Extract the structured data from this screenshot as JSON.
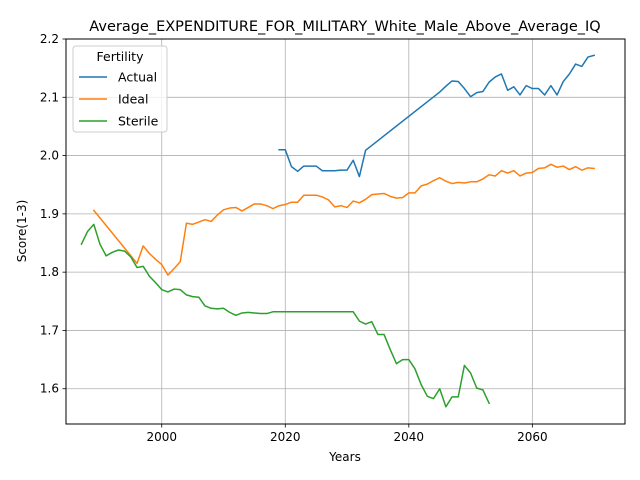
{
  "chart_data": {
    "type": "line",
    "title": "Average_EXPENDITURE_FOR_MILITARY_White_Male_Above_Average_IQ",
    "xlabel": "Years",
    "ylabel": "Score(1-3)",
    "xlim": [
      1984.5,
      2075
    ],
    "ylim": [
      1.5395,
      2.2
    ],
    "xticks": [
      2000,
      2020,
      2040,
      2060
    ],
    "yticks": [
      1.6,
      1.7,
      1.8,
      1.9,
      2.0,
      2.1,
      2.2
    ],
    "xtick_labels": [
      "2000",
      "2020",
      "2040",
      "2060"
    ],
    "ytick_labels": [
      "1.6",
      "1.7",
      "1.8",
      "1.9",
      "2.0",
      "2.1",
      "2.2"
    ],
    "grid": true,
    "legend": {
      "title": "Fertility",
      "placement": "top-left"
    },
    "series": [
      {
        "name": "Actual",
        "color": "#1f77b4",
        "x": [
          2019,
          2020,
          2021,
          2022,
          2023,
          2024,
          2025,
          2026,
          2027,
          2028,
          2029,
          2030,
          2031,
          2032,
          2033,
          2045,
          2046,
          2047,
          2048,
          2049,
          2050,
          2051,
          2052,
          2053,
          2054,
          2055,
          2056,
          2057,
          2058,
          2059,
          2060,
          2061,
          2062,
          2063,
          2064,
          2065,
          2066,
          2067,
          2068,
          2069,
          2070
        ],
        "y": [
          2.01,
          2.01,
          1.981,
          1.973,
          1.982,
          1.982,
          1.982,
          1.974,
          1.974,
          1.974,
          1.975,
          1.975,
          1.992,
          1.964,
          2.009,
          2.109,
          2.119,
          2.128,
          2.127,
          2.115,
          2.101,
          2.108,
          2.11,
          2.126,
          2.135,
          2.14,
          2.112,
          2.118,
          2.104,
          2.12,
          2.115,
          2.115,
          2.104,
          2.12,
          2.104,
          2.127,
          2.14,
          2.157,
          2.153,
          2.169,
          2.172
        ]
      },
      {
        "name": "Ideal",
        "color": "#ff7f0e",
        "x": [
          1989,
          1996,
          1997,
          1998,
          1999,
          2000,
          2001,
          2002,
          2003,
          2004,
          2005,
          2006,
          2007,
          2008,
          2009,
          2010,
          2011,
          2012,
          2013,
          2014,
          2015,
          2016,
          2017,
          2018,
          2019,
          2020,
          2021,
          2022,
          2023,
          2024,
          2025,
          2026,
          2027,
          2028,
          2029,
          2030,
          2031,
          2032,
          2033,
          2034,
          2035,
          2036,
          2037,
          2038,
          2039,
          2040,
          2041,
          2042,
          2043,
          2044,
          2045,
          2046,
          2047,
          2048,
          2049,
          2050,
          2051,
          2052,
          2053,
          2054,
          2055,
          2056,
          2057,
          2058,
          2059,
          2060,
          2061,
          2062,
          2063,
          2064,
          2065,
          2066,
          2067,
          2068,
          2069,
          2070
        ],
        "y": [
          1.906,
          1.815,
          1.845,
          1.832,
          1.822,
          1.813,
          1.795,
          1.806,
          1.818,
          1.884,
          1.882,
          1.886,
          1.89,
          1.887,
          1.898,
          1.907,
          1.91,
          1.911,
          1.905,
          1.911,
          1.917,
          1.917,
          1.914,
          1.909,
          1.914,
          1.916,
          1.92,
          1.92,
          1.932,
          1.932,
          1.932,
          1.929,
          1.924,
          1.912,
          1.914,
          1.911,
          1.922,
          1.919,
          1.925,
          1.933,
          1.934,
          1.935,
          1.93,
          1.927,
          1.928,
          1.936,
          1.936,
          1.948,
          1.951,
          1.957,
          1.962,
          1.956,
          1.952,
          1.954,
          1.953,
          1.955,
          1.955,
          1.96,
          1.967,
          1.965,
          1.974,
          1.97,
          1.974,
          1.965,
          1.97,
          1.971,
          1.978,
          1.979,
          1.985,
          1.98,
          1.982,
          1.976,
          1.981,
          1.975,
          1.979,
          1.978
        ]
      },
      {
        "name": "Sterile",
        "color": "#2ca02c",
        "x": [
          1987,
          1988,
          1989,
          1990,
          1991,
          1992,
          1993,
          1994,
          1995,
          1996,
          1997,
          1998,
          1999,
          2000,
          2001,
          2002,
          2003,
          2004,
          2005,
          2006,
          2007,
          2008,
          2009,
          2010,
          2011,
          2012,
          2013,
          2014,
          2015,
          2016,
          2017,
          2018,
          2019,
          2020,
          2021,
          2022,
          2023,
          2024,
          2025,
          2026,
          2027,
          2028,
          2029,
          2030,
          2031,
          2032,
          2033,
          2034,
          2035,
          2036,
          2037,
          2038,
          2039,
          2040,
          2041,
          2042,
          2043,
          2044,
          2045,
          2046,
          2047,
          2048,
          2049,
          2050,
          2051,
          2052,
          2053
        ],
        "y": [
          1.848,
          1.87,
          1.882,
          1.848,
          1.828,
          1.834,
          1.838,
          1.836,
          1.826,
          1.808,
          1.81,
          1.793,
          1.782,
          1.77,
          1.766,
          1.771,
          1.77,
          1.761,
          1.758,
          1.757,
          1.742,
          1.738,
          1.737,
          1.738,
          1.731,
          1.726,
          1.73,
          1.731,
          1.73,
          1.729,
          1.729,
          1.732,
          1.732,
          1.732,
          1.732,
          1.732,
          1.732,
          1.732,
          1.732,
          1.732,
          1.732,
          1.732,
          1.732,
          1.732,
          1.732,
          1.716,
          1.711,
          1.715,
          1.693,
          1.693,
          1.667,
          1.643,
          1.65,
          1.65,
          1.634,
          1.607,
          1.587,
          1.583,
          1.6,
          1.569,
          1.586,
          1.586,
          1.64,
          1.627,
          1.601,
          1.598,
          1.575
        ]
      }
    ]
  }
}
